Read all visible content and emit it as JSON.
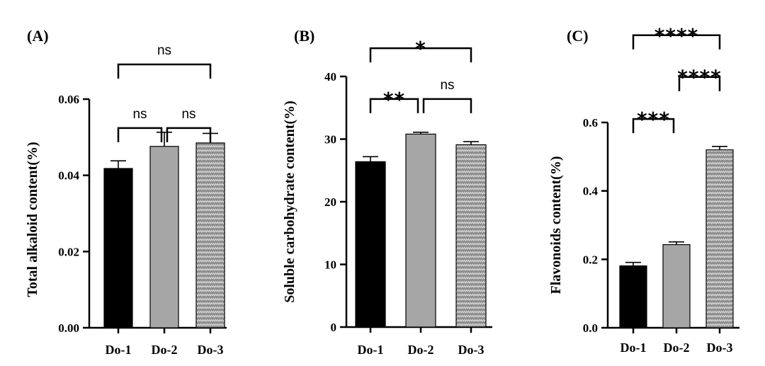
{
  "chart_data": [
    {
      "type": "bar",
      "panel": "(A)",
      "categories": [
        "Do-1",
        "Do-2",
        "Do-3"
      ],
      "values": [
        0.0418,
        0.0476,
        0.0485
      ],
      "errors": [
        0.002,
        0.0037,
        0.0025
      ],
      "fills": [
        "solid-black",
        "solid-gray",
        "pattern"
      ],
      "ylabel": "Total alkaloid content(%)",
      "ylim": [
        0,
        0.06
      ],
      "yticks": [
        "0.00",
        "0.02",
        "0.04",
        "0.06"
      ],
      "ytick_values": [
        0,
        0.02,
        0.04,
        0.06
      ],
      "significance": [
        {
          "from": 0,
          "to": 1,
          "label": "ns",
          "y": 0.0524
        },
        {
          "from": 1,
          "to": 2,
          "label": "ns",
          "y": 0.0524
        },
        {
          "from": 0,
          "to": 2,
          "label": "ns",
          "y": 0.0691
        }
      ]
    },
    {
      "type": "bar",
      "panel": "(B)",
      "categories": [
        "Do-1",
        "Do-2",
        "Do-3"
      ],
      "values": [
        26.4,
        30.8,
        29.1
      ],
      "errors": [
        0.8,
        0.3,
        0.5
      ],
      "fills": [
        "solid-black",
        "solid-gray",
        "pattern"
      ],
      "ylabel": "Soluble carbohydrate content(%)",
      "ylim": [
        0,
        40
      ],
      "yticks": [
        "0",
        "10",
        "20",
        "30",
        "40"
      ],
      "ytick_values": [
        0,
        10,
        20,
        30,
        40
      ],
      "significance": [
        {
          "from": 0,
          "to": 1,
          "label": "**",
          "y": 36.4
        },
        {
          "from": 1,
          "to": 2,
          "label": "ns",
          "y": 36.4
        },
        {
          "from": 0,
          "to": 2,
          "label": "*",
          "y": 44.5
        }
      ]
    },
    {
      "type": "bar",
      "panel": "(C)",
      "categories": [
        "Do-1",
        "Do-2",
        "Do-3"
      ],
      "values": [
        0.181,
        0.243,
        0.52
      ],
      "errors": [
        0.01,
        0.008,
        0.01
      ],
      "fills": [
        "solid-black",
        "solid-gray",
        "pattern"
      ],
      "ylabel": "Flavonoids content(%)",
      "ylim": [
        0,
        0.6
      ],
      "yticks": [
        "0.0",
        "0.2",
        "0.4",
        "0.6"
      ],
      "ytick_values": [
        0,
        0.2,
        0.4,
        0.6
      ],
      "significance": [
        {
          "from": 0,
          "to": 1,
          "label": "***",
          "y": 0.61
        },
        {
          "from": 1,
          "to": 2,
          "label": "****",
          "y": 0.733
        },
        {
          "from": 0,
          "to": 2,
          "label": "****",
          "y": 0.855
        }
      ]
    }
  ],
  "colors": {
    "bar_black": "#000000",
    "bar_gray": "#a6a6a6",
    "pattern_bg": "#8c8c8c",
    "pattern_fg": "#d9d9d9",
    "axis": "#000000"
  }
}
